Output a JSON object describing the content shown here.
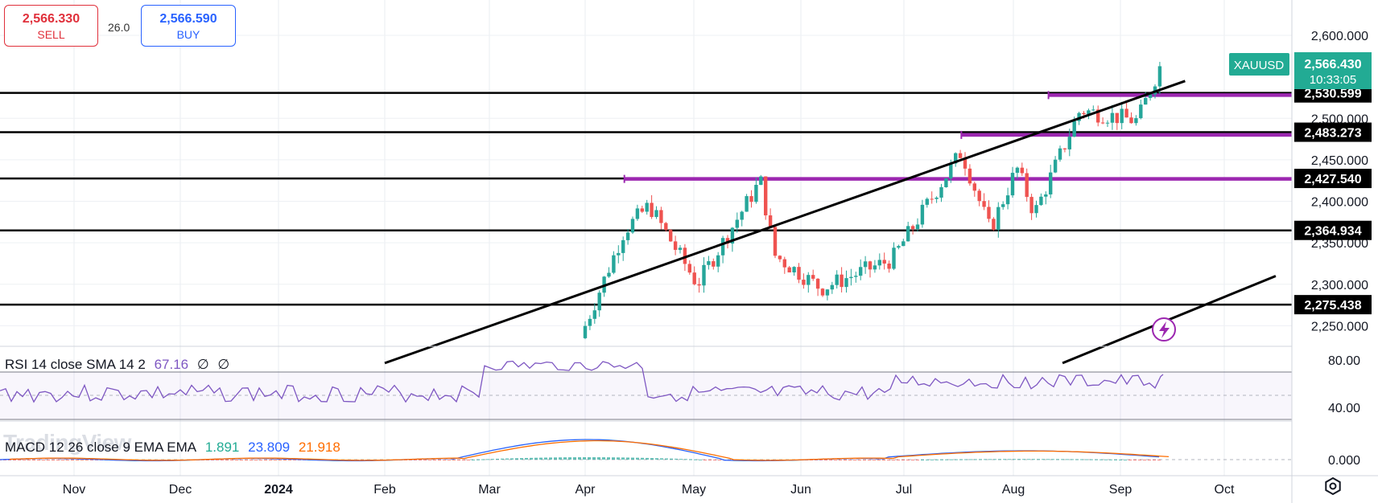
{
  "trade": {
    "sell_price": "2,566.330",
    "sell_label": "SELL",
    "buy_price": "2,566.590",
    "buy_label": "BUY",
    "spread": "26.0"
  },
  "symbol": {
    "name": "XAUUSD",
    "price": "2,566.430",
    "countdown": "10:33:05"
  },
  "colors": {
    "up": "#26a69a",
    "down": "#ef5350",
    "trendline": "#000000",
    "zone": "#9c27b0",
    "rsi": "#7e57c2",
    "macd": "#2962ff",
    "signal": "#ff6d00",
    "price_tag": "#22ab94"
  },
  "rsi": {
    "label": "RSI 14 close SMA 14 2",
    "value": "67.16",
    "null1": "∅",
    "null2": "∅",
    "axis_labels": [
      "80.00",
      "40.00"
    ]
  },
  "macd": {
    "label": "MACD 12 26 close 9 EMA EMA",
    "hist": "1.891",
    "macd": "23.809",
    "signal": "21.918",
    "axis_label": "0.000"
  },
  "watermark": "TradingView",
  "icons": [
    "lightning-icon",
    "settings-icon"
  ],
  "chart_data": {
    "type": "candlestick",
    "symbol": "XAUUSD",
    "ylim": [
      2200,
      2630
    ],
    "y_ticks": [
      "2,600.000",
      "2,500.000",
      "2,450.000",
      "2,400.000",
      "2,350.000",
      "2,300.000",
      "2,250.000"
    ],
    "x_ticks": [
      "Nov",
      "Dec",
      "2024",
      "Feb",
      "Mar",
      "Apr",
      "May",
      "Jun",
      "Jul",
      "Aug",
      "Sep",
      "Oct"
    ],
    "horizontal_levels": [
      {
        "label": "2,530.599",
        "value": 2530.599
      },
      {
        "label": "2,483.273",
        "value": 2483.273
      },
      {
        "label": "2,427.540",
        "value": 2427.54
      },
      {
        "label": "2,364.934",
        "value": 2364.934
      },
      {
        "label": "2,275.438",
        "value": 2275.438
      }
    ],
    "zones": [
      {
        "value": 2528,
        "start": "Aug 11"
      },
      {
        "value": 2480,
        "start": "Jul 17"
      },
      {
        "value": 2427,
        "start": "Apr 12"
      }
    ],
    "trendlines": [
      {
        "from": {
          "date": "Feb 1",
          "price": 2205
        },
        "to": {
          "date": "Sep 20",
          "price": 2545
        }
      },
      {
        "from": {
          "date": "Aug 15",
          "price": 2205
        },
        "to": {
          "date": "Oct 16",
          "price": 2310
        }
      }
    ],
    "key_closes": [
      {
        "date": "Apr 1",
        "price": 2250
      },
      {
        "date": "Apr 12",
        "price": 2365
      },
      {
        "date": "Apr 19",
        "price": 2395
      },
      {
        "date": "May 2",
        "price": 2300
      },
      {
        "date": "May 20",
        "price": 2425
      },
      {
        "date": "May 24",
        "price": 2335
      },
      {
        "date": "Jun 7",
        "price": 2295
      },
      {
        "date": "Jun 28",
        "price": 2330
      },
      {
        "date": "Jul 17",
        "price": 2460
      },
      {
        "date": "Jul 25",
        "price": 2365
      },
      {
        "date": "Aug 2",
        "price": 2440
      },
      {
        "date": "Aug 7",
        "price": 2385
      },
      {
        "date": "Aug 20",
        "price": 2510
      },
      {
        "date": "Sep 6",
        "price": 2497
      },
      {
        "date": "Sep 13",
        "price": 2566.43
      }
    ]
  }
}
